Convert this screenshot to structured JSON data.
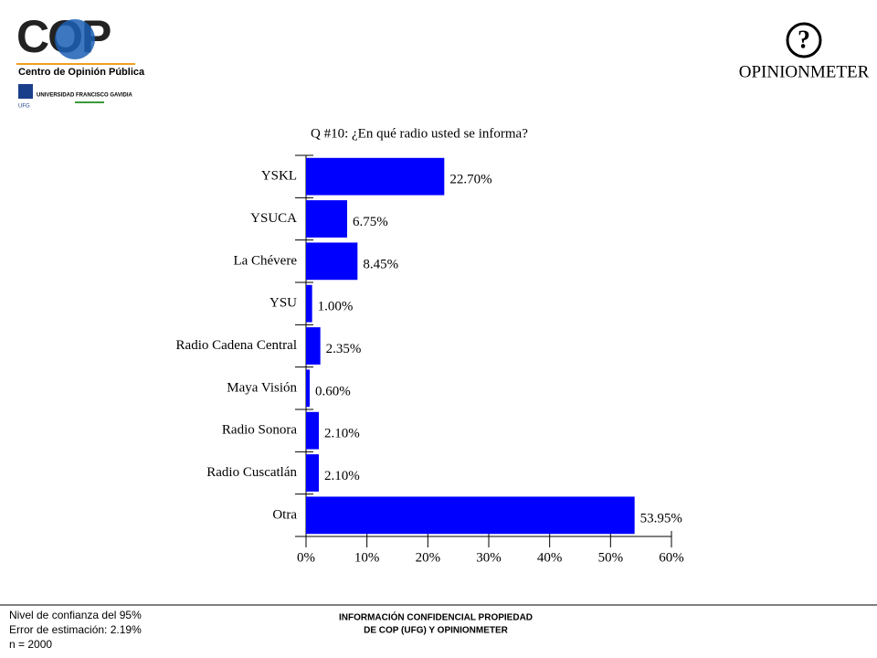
{
  "header": {
    "logo_left": "COP",
    "logo_left_subtitle": "Centro de Opinión Pública",
    "university": "UNIVERSIDAD FRANCISCO GAVIDIA",
    "university_short": "UFG",
    "logo_right_symbol": "?",
    "logo_right": "OPINIONMETER"
  },
  "chart_data": {
    "type": "bar",
    "orientation": "horizontal",
    "title": "Q #10: ¿En qué radio usted se informa?",
    "categories": [
      "YSKL",
      "YSUCA",
      "La Chévere",
      "YSU",
      "Radio Cadena Central",
      "Maya Visión",
      "Radio Sonora",
      "Radio Cuscatlán",
      "Otra"
    ],
    "values": [
      22.7,
      6.75,
      8.45,
      1.0,
      2.35,
      0.6,
      2.1,
      2.1,
      53.95
    ],
    "value_labels": [
      "22.70%",
      "6.75%",
      "8.45%",
      "1.00%",
      "2.35%",
      "0.60%",
      "2.10%",
      "2.10%",
      "53.95%"
    ],
    "color": "#0000ff",
    "xlim": [
      0,
      60
    ],
    "xticks": [
      {
        "value": 0,
        "label": "0%"
      },
      {
        "value": 10,
        "label": "10%"
      },
      {
        "value": 20,
        "label": "20%"
      },
      {
        "value": 30,
        "label": "30%"
      },
      {
        "value": 40,
        "label": "40%"
      },
      {
        "value": 50,
        "label": "50%"
      },
      {
        "value": 60,
        "label": "60%"
      }
    ]
  },
  "footer": {
    "notes": [
      "Nivel de confianza del 95%",
      "Error de estimación: 2.19%",
      "n = 2000"
    ],
    "confidential": [
      "INFORMACIÓN CONFIDENCIAL PROPIEDAD",
      "DE COP (UFG) Y OPINIONMETER"
    ]
  }
}
